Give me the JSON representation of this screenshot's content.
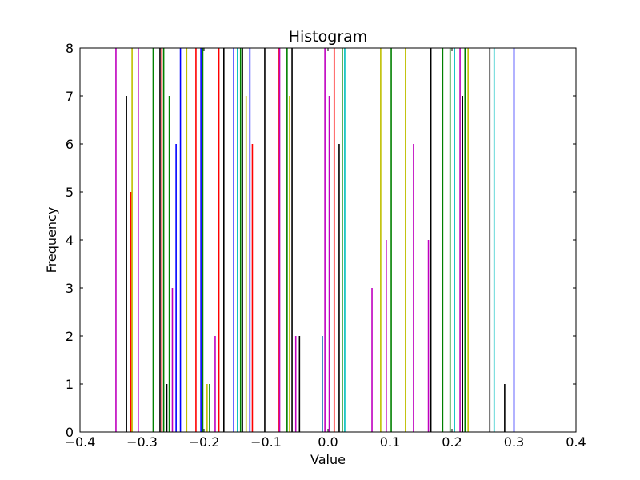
{
  "chart_data": {
    "type": "bar",
    "title": "Histogram",
    "xlabel": "Value",
    "ylabel": "Frequency",
    "xlim": [
      -0.4,
      0.4
    ],
    "ylim": [
      0,
      8
    ],
    "xticks": [
      -0.4,
      -0.3,
      -0.2,
      -0.1,
      0.0,
      0.1,
      0.2,
      0.3,
      0.4
    ],
    "xtick_labels": [
      "−0.4",
      "−0.3",
      "−0.2",
      "−0.1",
      "0.0",
      "0.1",
      "0.2",
      "0.3",
      "0.4"
    ],
    "yticks": [
      0,
      1,
      2,
      3,
      4,
      5,
      6,
      7,
      8
    ],
    "ytick_labels": [
      "0",
      "1",
      "2",
      "3",
      "4",
      "5",
      "6",
      "7",
      "8"
    ],
    "grid": false,
    "legend": "none",
    "colors": {
      "blue": "#0000ff",
      "green": "#008000",
      "red": "#ff0000",
      "cyan": "#00bfbf",
      "magenta": "#bf00bf",
      "olive": "#bfbf00",
      "black": "#000000",
      "steelblue": "#1f77b4"
    },
    "bars": [
      {
        "x": -0.342,
        "y": 8,
        "color": "magenta"
      },
      {
        "x": -0.325,
        "y": 7,
        "color": "black"
      },
      {
        "x": -0.318,
        "y": 5,
        "color": "red"
      },
      {
        "x": -0.316,
        "y": 8,
        "color": "olive"
      },
      {
        "x": -0.306,
        "y": 8,
        "color": "magenta"
      },
      {
        "x": -0.282,
        "y": 8,
        "color": "green"
      },
      {
        "x": -0.271,
        "y": 8,
        "color": "black"
      },
      {
        "x": -0.268,
        "y": 8,
        "color": "red"
      },
      {
        "x": -0.265,
        "y": 8,
        "color": "green"
      },
      {
        "x": -0.26,
        "y": 1,
        "color": "black"
      },
      {
        "x": -0.256,
        "y": 7,
        "color": "green"
      },
      {
        "x": -0.251,
        "y": 3,
        "color": "magenta"
      },
      {
        "x": -0.245,
        "y": 6,
        "color": "blue"
      },
      {
        "x": -0.238,
        "y": 8,
        "color": "blue"
      },
      {
        "x": -0.228,
        "y": 8,
        "color": "olive"
      },
      {
        "x": -0.213,
        "y": 8,
        "color": "red"
      },
      {
        "x": -0.205,
        "y": 8,
        "color": "blue"
      },
      {
        "x": -0.202,
        "y": 8,
        "color": "green"
      },
      {
        "x": -0.195,
        "y": 1,
        "color": "olive"
      },
      {
        "x": -0.191,
        "y": 1,
        "color": "green"
      },
      {
        "x": -0.182,
        "y": 2,
        "color": "magenta"
      },
      {
        "x": -0.176,
        "y": 8,
        "color": "red"
      },
      {
        "x": -0.168,
        "y": 8,
        "color": "black"
      },
      {
        "x": -0.152,
        "y": 8,
        "color": "blue"
      },
      {
        "x": -0.146,
        "y": 8,
        "color": "cyan"
      },
      {
        "x": -0.141,
        "y": 8,
        "color": "green"
      },
      {
        "x": -0.138,
        "y": 8,
        "color": "black"
      },
      {
        "x": -0.132,
        "y": 7,
        "color": "olive"
      },
      {
        "x": -0.126,
        "y": 8,
        "color": "blue"
      },
      {
        "x": -0.122,
        "y": 6,
        "color": "red"
      },
      {
        "x": -0.102,
        "y": 8,
        "color": "black"
      },
      {
        "x": -0.08,
        "y": 8,
        "color": "red"
      },
      {
        "x": -0.078,
        "y": 8,
        "color": "magenta"
      },
      {
        "x": -0.066,
        "y": 8,
        "color": "green"
      },
      {
        "x": -0.062,
        "y": 7,
        "color": "olive"
      },
      {
        "x": -0.058,
        "y": 8,
        "color": "black"
      },
      {
        "x": -0.052,
        "y": 2,
        "color": "magenta"
      },
      {
        "x": -0.046,
        "y": 2,
        "color": "black"
      },
      {
        "x": -0.009,
        "y": 2,
        "color": "steelblue"
      },
      {
        "x": -0.005,
        "y": 8,
        "color": "magenta"
      },
      {
        "x": 0.002,
        "y": 7,
        "color": "magenta"
      },
      {
        "x": 0.01,
        "y": 8,
        "color": "red"
      },
      {
        "x": 0.018,
        "y": 6,
        "color": "black"
      },
      {
        "x": 0.023,
        "y": 8,
        "color": "green"
      },
      {
        "x": 0.027,
        "y": 8,
        "color": "cyan"
      },
      {
        "x": 0.071,
        "y": 3,
        "color": "magenta"
      },
      {
        "x": 0.085,
        "y": 8,
        "color": "olive"
      },
      {
        "x": 0.094,
        "y": 4,
        "color": "magenta"
      },
      {
        "x": 0.102,
        "y": 8,
        "color": "green"
      },
      {
        "x": 0.125,
        "y": 8,
        "color": "olive"
      },
      {
        "x": 0.138,
        "y": 6,
        "color": "magenta"
      },
      {
        "x": 0.162,
        "y": 4,
        "color": "magenta"
      },
      {
        "x": 0.166,
        "y": 8,
        "color": "black"
      },
      {
        "x": 0.185,
        "y": 8,
        "color": "green"
      },
      {
        "x": 0.197,
        "y": 8,
        "color": "green"
      },
      {
        "x": 0.204,
        "y": 8,
        "color": "cyan"
      },
      {
        "x": 0.213,
        "y": 8,
        "color": "magenta"
      },
      {
        "x": 0.217,
        "y": 7,
        "color": "black"
      },
      {
        "x": 0.221,
        "y": 8,
        "color": "green"
      },
      {
        "x": 0.226,
        "y": 8,
        "color": "olive"
      },
      {
        "x": 0.261,
        "y": 8,
        "color": "black"
      },
      {
        "x": 0.268,
        "y": 8,
        "color": "cyan"
      },
      {
        "x": 0.285,
        "y": 1,
        "color": "black"
      },
      {
        "x": 0.3,
        "y": 8,
        "color": "blue"
      }
    ]
  }
}
